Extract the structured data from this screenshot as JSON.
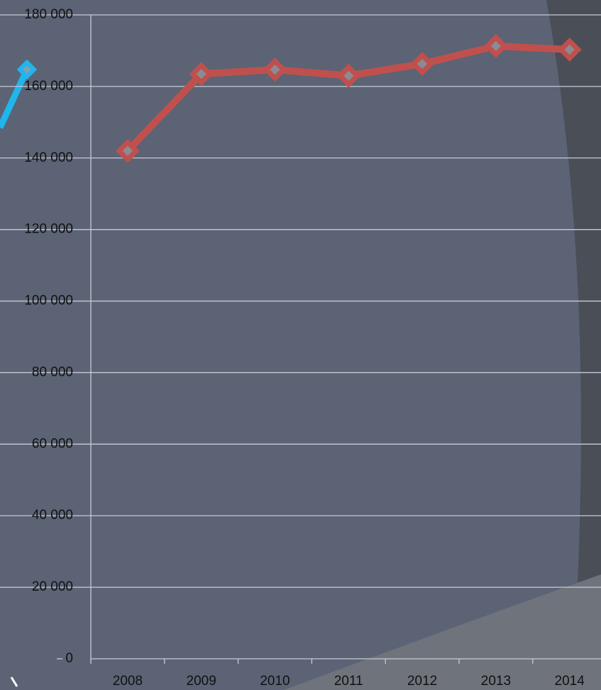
{
  "chart_data": {
    "type": "line",
    "categories": [
      "2008",
      "2009",
      "2010",
      "2011",
      "2012",
      "2013",
      "2014"
    ],
    "series": [
      {
        "color": "#c0504d",
        "values": [
          142000,
          163500,
          164700,
          163000,
          166300,
          171300,
          170300
        ]
      }
    ],
    "ylim": [
      0,
      180000
    ],
    "yticks": [
      0,
      {
        "value": 20000,
        "label": "20 000"
      },
      {
        "value": 40000,
        "label": "40 000"
      },
      {
        "value": 60000,
        "label": "60 000"
      },
      {
        "value": 80000,
        "label": "80 000"
      },
      {
        "value": 100000,
        "label": "100 000"
      },
      {
        "value": 120000,
        "label": "120 000"
      },
      {
        "value": 140000,
        "label": "140 000"
      },
      {
        "value": 160000,
        "label": "160 000"
      },
      {
        "value": 180000,
        "label": "180 000"
      }
    ],
    "grid": true
  }
}
